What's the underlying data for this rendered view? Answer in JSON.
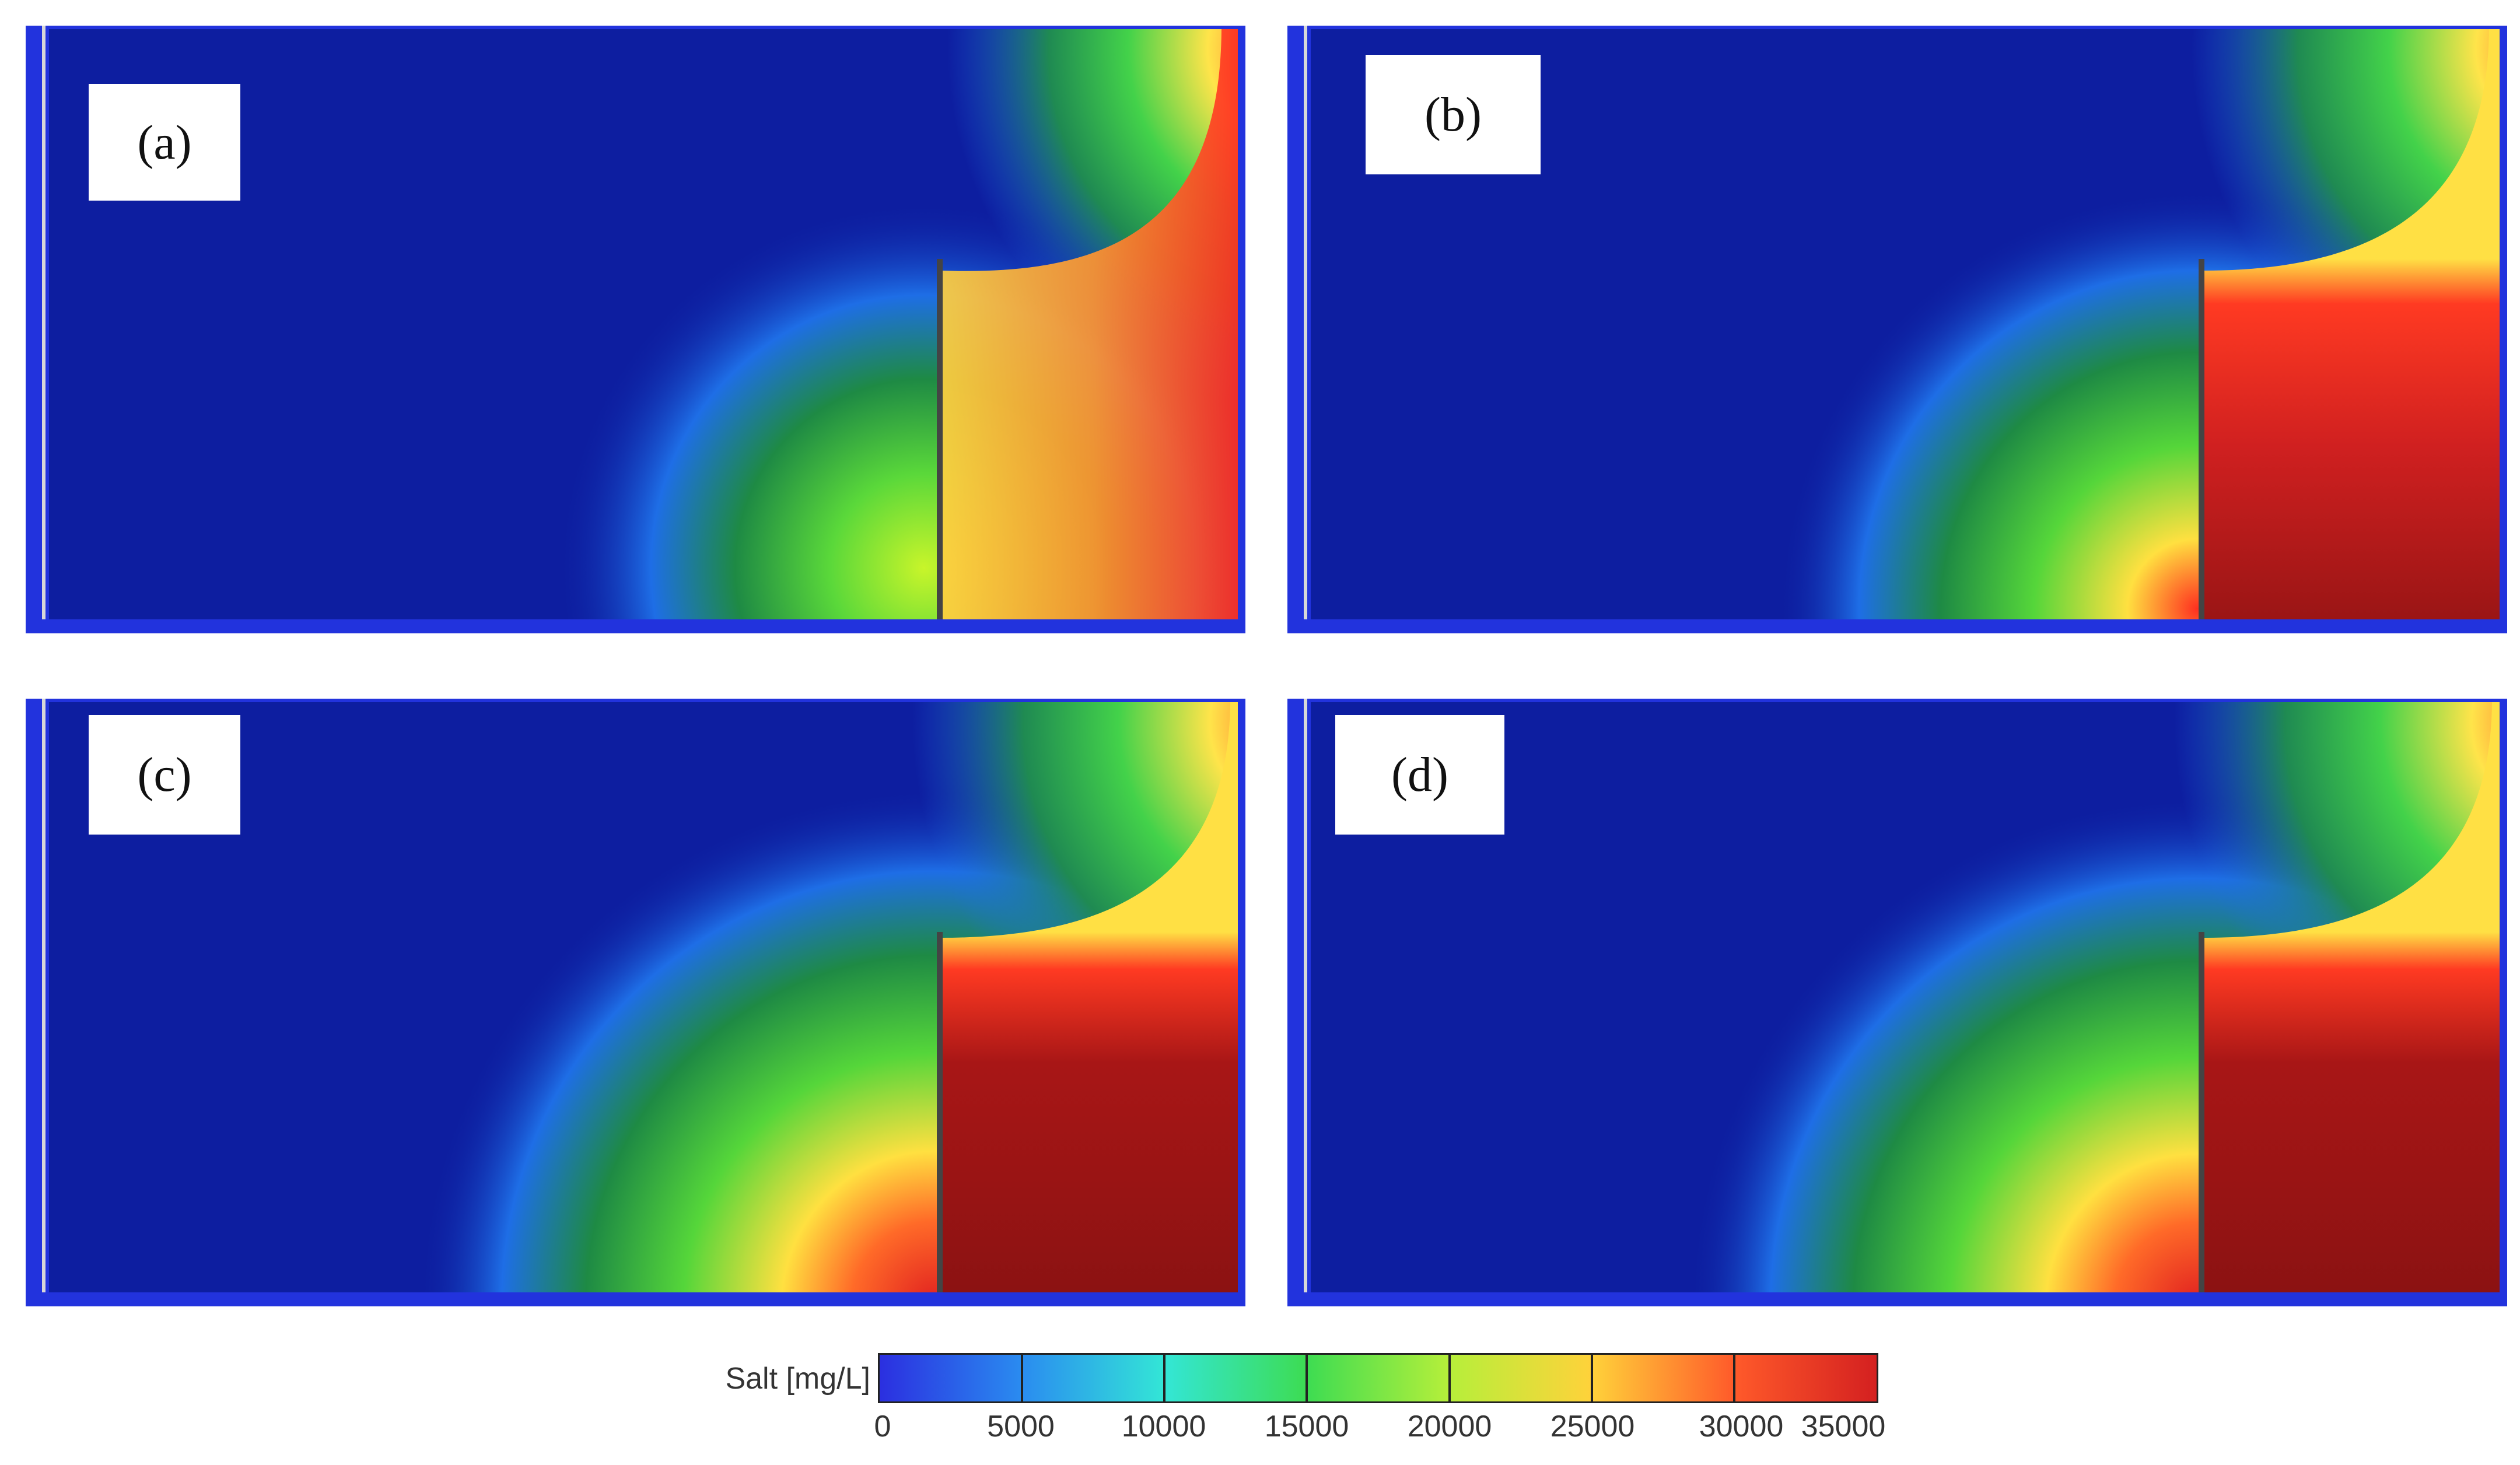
{
  "panels": [
    {
      "id": "a",
      "label": "(a)"
    },
    {
      "id": "b",
      "label": "(b)"
    },
    {
      "id": "c",
      "label": "(c)"
    },
    {
      "id": "d",
      "label": "(d)"
    }
  ],
  "legend": {
    "title": "Salt [mg/L]",
    "ticks": [
      "0",
      "5000",
      "10000",
      "15000",
      "20000",
      "25000",
      "30000",
      "35000"
    ]
  },
  "chart_data": {
    "type": "heatmap",
    "variable": "Salt",
    "unit": "mg/L",
    "color_scale": {
      "min": 0,
      "max": 35000,
      "tick_values": [
        0,
        5000,
        10000,
        15000,
        20000,
        25000,
        30000,
        35000
      ],
      "colors": [
        "#2b2fe0",
        "#2a8cf0",
        "#33e6d6",
        "#3ddc52",
        "#b6ef3a",
        "#ffd23a",
        "#ff5a2a",
        "#d42020"
      ]
    },
    "panels": [
      "(a)",
      "(b)",
      "(c)",
      "(d)"
    ]
  }
}
